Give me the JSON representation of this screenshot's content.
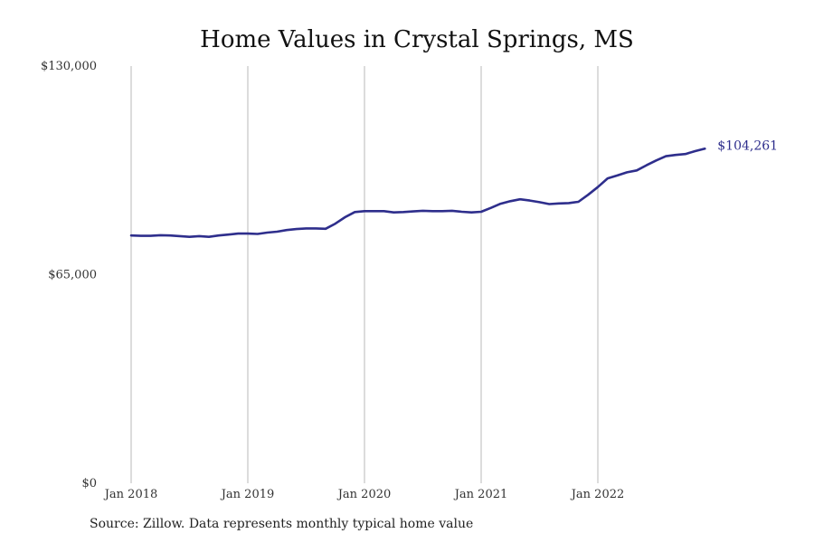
{
  "chart_data": {
    "type": "line",
    "title": "Home Values in Crystal Springs, MS",
    "xlabel": "",
    "ylabel": "",
    "ylim": [
      0,
      130000
    ],
    "y_ticks": [
      {
        "value": 0,
        "label": "$0"
      },
      {
        "value": 65000,
        "label": "$65,000"
      },
      {
        "value": 130000,
        "label": "$130,000"
      }
    ],
    "x_ticks": [
      {
        "value": 0,
        "label": "Jan 2018"
      },
      {
        "value": 12,
        "label": "Jan 2019"
      },
      {
        "value": 24,
        "label": "Jan 2020"
      },
      {
        "value": 36,
        "label": "Jan 2021"
      },
      {
        "value": 48,
        "label": "Jan 2022"
      }
    ],
    "x_start": "Jan 2018",
    "x_step": "month",
    "grid": "vertical",
    "line_color": "#2e2e8c",
    "series": [
      {
        "end_label": "$104,261",
        "values": [
          77200,
          77100,
          77100,
          77300,
          77200,
          77000,
          76800,
          77000,
          76800,
          77200,
          77500,
          77800,
          77800,
          77700,
          78100,
          78400,
          78900,
          79200,
          79400,
          79400,
          79300,
          80900,
          82900,
          84500,
          84800,
          84800,
          84800,
          84400,
          84500,
          84700,
          84900,
          84800,
          84800,
          84900,
          84600,
          84400,
          84600,
          85800,
          87100,
          87900,
          88500,
          88100,
          87600,
          87000,
          87200,
          87300,
          87700,
          89900,
          92300,
          95000,
          95900,
          96900,
          97500,
          99100,
          100600,
          101900,
          102300,
          102600,
          103500,
          104261
        ]
      }
    ]
  },
  "source": "Source: Zillow. Data represents monthly typical home value"
}
